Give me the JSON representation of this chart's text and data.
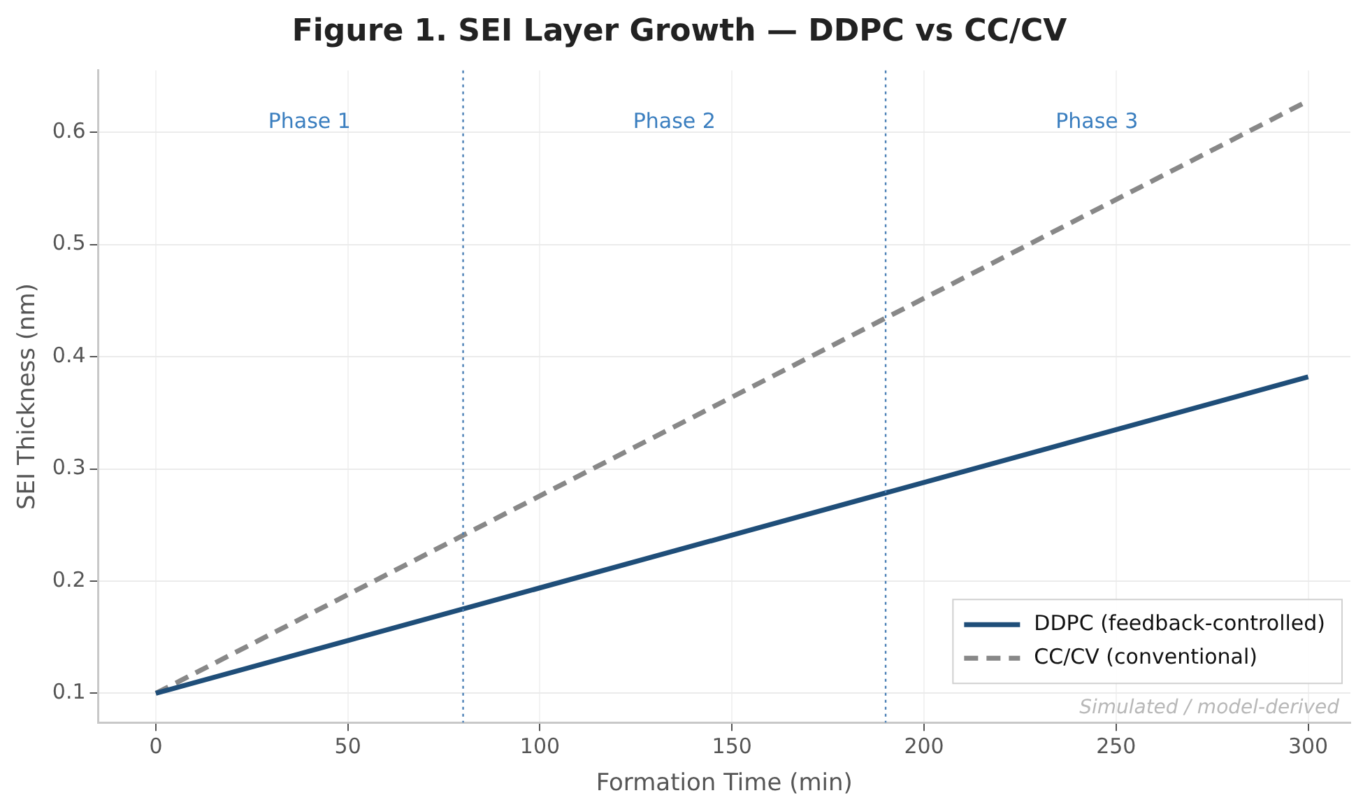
{
  "chart_data": {
    "type": "line",
    "title": "Figure 1. SEI Layer Growth — DDPC vs CC/CV",
    "xlabel": "Formation Time (min)",
    "ylabel": "SEI Thickness (nm)",
    "x": [
      0,
      300
    ],
    "series": [
      {
        "name": "DDPC (feedback-controlled)",
        "color": "#1f4e79",
        "values": [
          0.1,
          0.382
        ],
        "line_style": "solid"
      },
      {
        "name": "CC/CV (conventional)",
        "color": "#888888",
        "values": [
          0.1,
          0.628
        ],
        "line_style": "dashed"
      }
    ],
    "xlim": [
      -15,
      311
    ],
    "xticks": [
      0,
      50,
      100,
      150,
      200,
      250,
      300
    ],
    "ylim": [
      0.074,
      0.655
    ],
    "yticks": [
      0.1,
      0.2,
      0.3,
      0.4,
      0.5,
      0.6
    ],
    "ref_lines": [
      {
        "axis": "x",
        "value": 80,
        "color": "#4a7fb5",
        "line_style": "dotted"
      },
      {
        "axis": "x",
        "value": 190,
        "color": "#4a7fb5",
        "line_style": "dotted"
      }
    ],
    "annotations": [
      "Phase 1",
      "Phase 2",
      "Phase 3",
      "Simulated / model-derived"
    ],
    "grid": true,
    "legend": "bottom right",
    "marker": "none"
  }
}
